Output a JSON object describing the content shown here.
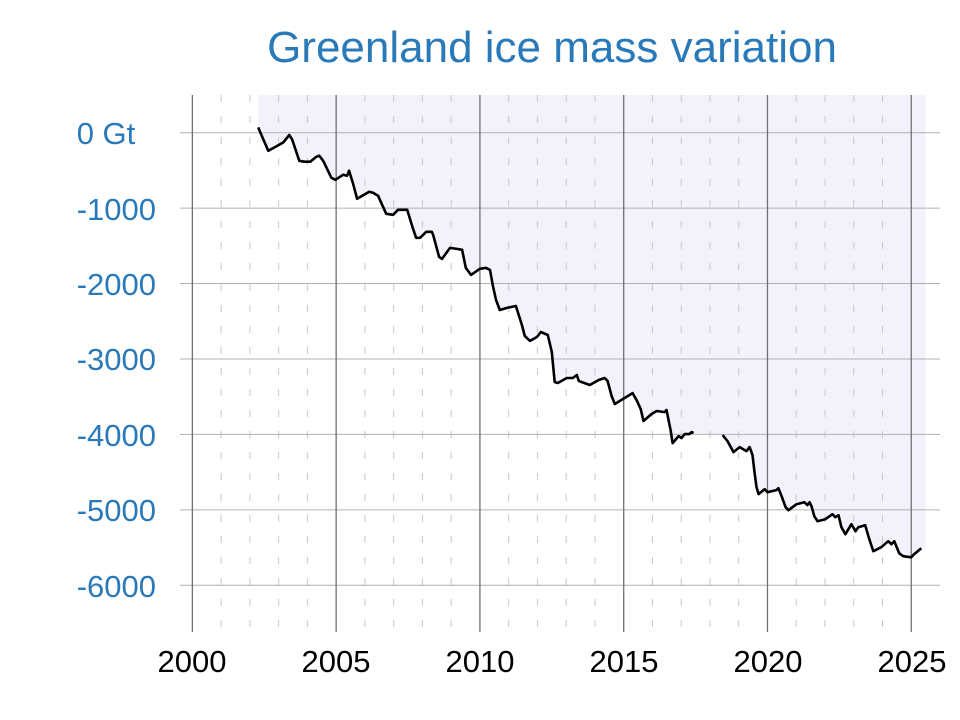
{
  "chart_data": {
    "type": "line",
    "title": "Greenland ice mass variation",
    "xlabel": "",
    "ylabel": "",
    "xlim": [
      1999.5,
      2026.0
    ],
    "ylim": [
      -6620,
      500
    ],
    "x_ticks": [
      2000,
      2005,
      2010,
      2015,
      2020,
      2025
    ],
    "x_tick_labels": [
      "2000",
      "2005",
      "2010",
      "2015",
      "2020",
      "2025"
    ],
    "y_ticks": [
      0,
      -1000,
      -2000,
      -3000,
      -4000,
      -5000,
      -6000
    ],
    "y_tick_labels": [
      "0 Gt",
      "-1000",
      "-2000",
      "-3000",
      "-4000",
      "-5000",
      "-6000"
    ],
    "grid": {
      "horizontal_major": true,
      "vertical_major_every_years": 5,
      "vertical_minor_dashed_every_years": 1
    },
    "shaded_span": [
      2002.3,
      2025.5
    ],
    "colors": {
      "title": "#2a7ab9",
      "y_labels": "#2a7ab9",
      "line": "#000000",
      "shade": "#f2f2fd",
      "grid": "#b0b0b0",
      "major_vertical": "#707070"
    },
    "segments": [
      [
        [
          2002.29,
          70
        ],
        [
          2002.4,
          -30
        ],
        [
          2002.64,
          -240
        ],
        [
          2002.88,
          -190
        ],
        [
          2003.16,
          -130
        ],
        [
          2003.37,
          -30
        ],
        [
          2003.47,
          -93
        ],
        [
          2003.72,
          -372
        ],
        [
          2003.89,
          -385
        ],
        [
          2004.1,
          -385
        ],
        [
          2004.31,
          -319
        ],
        [
          2004.41,
          -305
        ],
        [
          2004.55,
          -372
        ],
        [
          2004.83,
          -597
        ],
        [
          2004.97,
          -624
        ],
        [
          2005.24,
          -558
        ],
        [
          2005.38,
          -571
        ],
        [
          2005.45,
          -504
        ],
        [
          2005.59,
          -677
        ],
        [
          2005.73,
          -876
        ],
        [
          2005.97,
          -823
        ],
        [
          2006.15,
          -783
        ],
        [
          2006.28,
          -797
        ],
        [
          2006.46,
          -836
        ],
        [
          2006.74,
          -1075
        ],
        [
          2006.98,
          -1089
        ],
        [
          2007.15,
          -1022
        ],
        [
          2007.47,
          -1022
        ],
        [
          2007.64,
          -1235
        ],
        [
          2007.78,
          -1394
        ],
        [
          2007.92,
          -1394
        ],
        [
          2008.13,
          -1314
        ],
        [
          2008.33,
          -1314
        ],
        [
          2008.37,
          -1354
        ],
        [
          2008.58,
          -1646
        ],
        [
          2008.68,
          -1673
        ],
        [
          2008.96,
          -1527
        ],
        [
          2009.2,
          -1540
        ],
        [
          2009.38,
          -1553
        ],
        [
          2009.51,
          -1792
        ],
        [
          2009.69,
          -1885
        ],
        [
          2010.0,
          -1805
        ],
        [
          2010.21,
          -1792
        ],
        [
          2010.35,
          -1819
        ],
        [
          2010.45,
          -2031
        ],
        [
          2010.56,
          -2217
        ],
        [
          2010.69,
          -2350
        ],
        [
          2010.94,
          -2323
        ],
        [
          2011.25,
          -2297
        ],
        [
          2011.35,
          -2416
        ],
        [
          2011.46,
          -2549
        ],
        [
          2011.56,
          -2695
        ],
        [
          2011.74,
          -2761
        ],
        [
          2011.98,
          -2708
        ],
        [
          2012.12,
          -2642
        ],
        [
          2012.36,
          -2682
        ],
        [
          2012.5,
          -2907
        ],
        [
          2012.6,
          -3305
        ],
        [
          2012.71,
          -3319
        ],
        [
          2013.02,
          -3252
        ],
        [
          2013.23,
          -3252
        ],
        [
          2013.37,
          -3212
        ],
        [
          2013.44,
          -3292
        ],
        [
          2013.82,
          -3345
        ],
        [
          2014.13,
          -3279
        ],
        [
          2014.34,
          -3252
        ],
        [
          2014.44,
          -3292
        ],
        [
          2014.58,
          -3491
        ],
        [
          2014.69,
          -3597
        ],
        [
          2015.03,
          -3518
        ],
        [
          2015.31,
          -3452
        ],
        [
          2015.45,
          -3545
        ],
        [
          2015.59,
          -3664
        ],
        [
          2015.69,
          -3823
        ],
        [
          2015.97,
          -3730
        ],
        [
          2016.15,
          -3690
        ],
        [
          2016.42,
          -3704
        ],
        [
          2016.49,
          -3677
        ],
        [
          2016.63,
          -3943
        ],
        [
          2016.7,
          -4115
        ],
        [
          2016.91,
          -4022
        ],
        [
          2017.01,
          -4049
        ],
        [
          2017.12,
          -3996
        ],
        [
          2017.29,
          -3996
        ],
        [
          2017.36,
          -3969
        ],
        [
          2017.43,
          -3982
        ]
      ],
      [
        [
          2018.44,
          -4009
        ],
        [
          2018.61,
          -4089
        ],
        [
          2018.82,
          -4235
        ],
        [
          2019.03,
          -4168
        ],
        [
          2019.27,
          -4221
        ],
        [
          2019.38,
          -4168
        ],
        [
          2019.48,
          -4275
        ],
        [
          2019.55,
          -4500
        ],
        [
          2019.62,
          -4699
        ],
        [
          2019.69,
          -4792
        ],
        [
          2019.9,
          -4726
        ],
        [
          2020.0,
          -4766
        ],
        [
          2020.31,
          -4739
        ],
        [
          2020.38,
          -4713
        ],
        [
          2020.49,
          -4819
        ],
        [
          2020.63,
          -4965
        ],
        [
          2020.73,
          -5005
        ],
        [
          2021.01,
          -4925
        ],
        [
          2021.28,
          -4899
        ],
        [
          2021.39,
          -4938
        ],
        [
          2021.46,
          -4899
        ],
        [
          2021.53,
          -4952
        ],
        [
          2021.63,
          -5085
        ],
        [
          2021.74,
          -5151
        ],
        [
          2022.01,
          -5124
        ],
        [
          2022.26,
          -5058
        ],
        [
          2022.36,
          -5098
        ],
        [
          2022.47,
          -5071
        ],
        [
          2022.57,
          -5230
        ],
        [
          2022.71,
          -5323
        ],
        [
          2022.92,
          -5191
        ],
        [
          2023.06,
          -5283
        ],
        [
          2023.16,
          -5230
        ],
        [
          2023.4,
          -5204
        ],
        [
          2023.54,
          -5390
        ],
        [
          2023.68,
          -5549
        ],
        [
          2023.96,
          -5496
        ],
        [
          2024.2,
          -5416
        ],
        [
          2024.31,
          -5456
        ],
        [
          2024.41,
          -5416
        ],
        [
          2024.58,
          -5576
        ],
        [
          2024.72,
          -5615
        ],
        [
          2025.0,
          -5629
        ],
        [
          2025.1,
          -5589
        ],
        [
          2025.35,
          -5509
        ]
      ]
    ]
  }
}
